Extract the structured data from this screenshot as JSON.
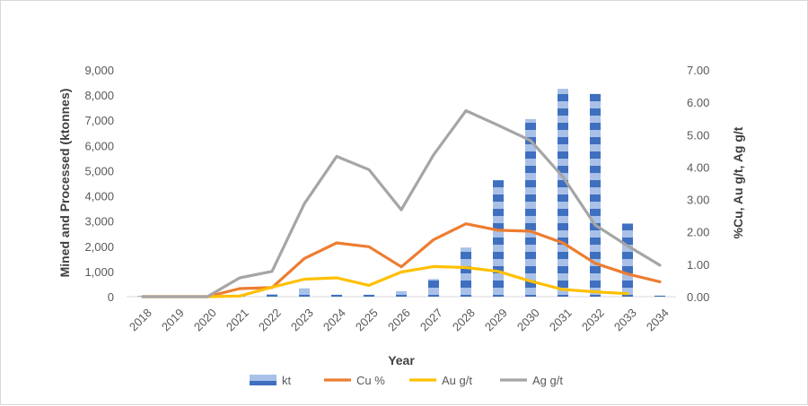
{
  "chart_data": {
    "type": "bar",
    "categories": [
      "2018",
      "2019",
      "2020",
      "2021",
      "2022",
      "2023",
      "2024",
      "2025",
      "2026",
      "2027",
      "2028",
      "2029",
      "2030",
      "2031",
      "2032",
      "2033",
      "2034"
    ],
    "series": [
      {
        "name": "kt",
        "type": "bar",
        "axis": "left",
        "color": "#4472c4",
        "values": [
          0,
          0,
          0,
          0,
          100,
          330,
          80,
          80,
          220,
          700,
          1950,
          4620,
          7050,
          8250,
          8050,
          2900,
          40
        ]
      },
      {
        "name": "Cu %",
        "type": "line",
        "axis": "right",
        "color": "#ed7d31",
        "values": [
          0,
          0,
          0,
          0.25,
          0.28,
          1.18,
          1.66,
          1.54,
          0.92,
          1.76,
          2.25,
          2.05,
          2.02,
          1.66,
          1.03,
          0.7,
          0.46
        ]
      },
      {
        "name": "Au g/t",
        "type": "line",
        "axis": "right",
        "color": "#ffc000",
        "values": [
          0,
          0,
          0,
          0.02,
          0.29,
          0.54,
          0.58,
          0.35,
          0.76,
          0.93,
          0.9,
          0.78,
          0.48,
          0.22,
          0.15,
          0.09,
          null
        ]
      },
      {
        "name": "Ag g/t",
        "type": "line",
        "axis": "right",
        "color": "#a5a5a5",
        "values": [
          0,
          0,
          0,
          0.58,
          0.78,
          2.87,
          4.33,
          3.92,
          2.68,
          4.38,
          5.74,
          5.29,
          4.82,
          3.7,
          2.21,
          1.57,
          0.97
        ]
      }
    ],
    "xlabel": "Year",
    "ylabel": "Mined and Processed (ktonnes)",
    "y2label": "%Cu, Au g/t, Ag g/t",
    "ylim": [
      0,
      9000
    ],
    "y2lim": [
      0,
      7
    ],
    "yticks": [
      "0",
      "1,000",
      "2,000",
      "3,000",
      "4,000",
      "5,000",
      "6,000",
      "7,000",
      "8,000",
      "9,000"
    ],
    "y2ticks": [
      "0.00",
      "1.00",
      "2.00",
      "3.00",
      "4.00",
      "5.00",
      "6.00",
      "7.00"
    ],
    "grid": false,
    "legend_position": "bottom"
  }
}
